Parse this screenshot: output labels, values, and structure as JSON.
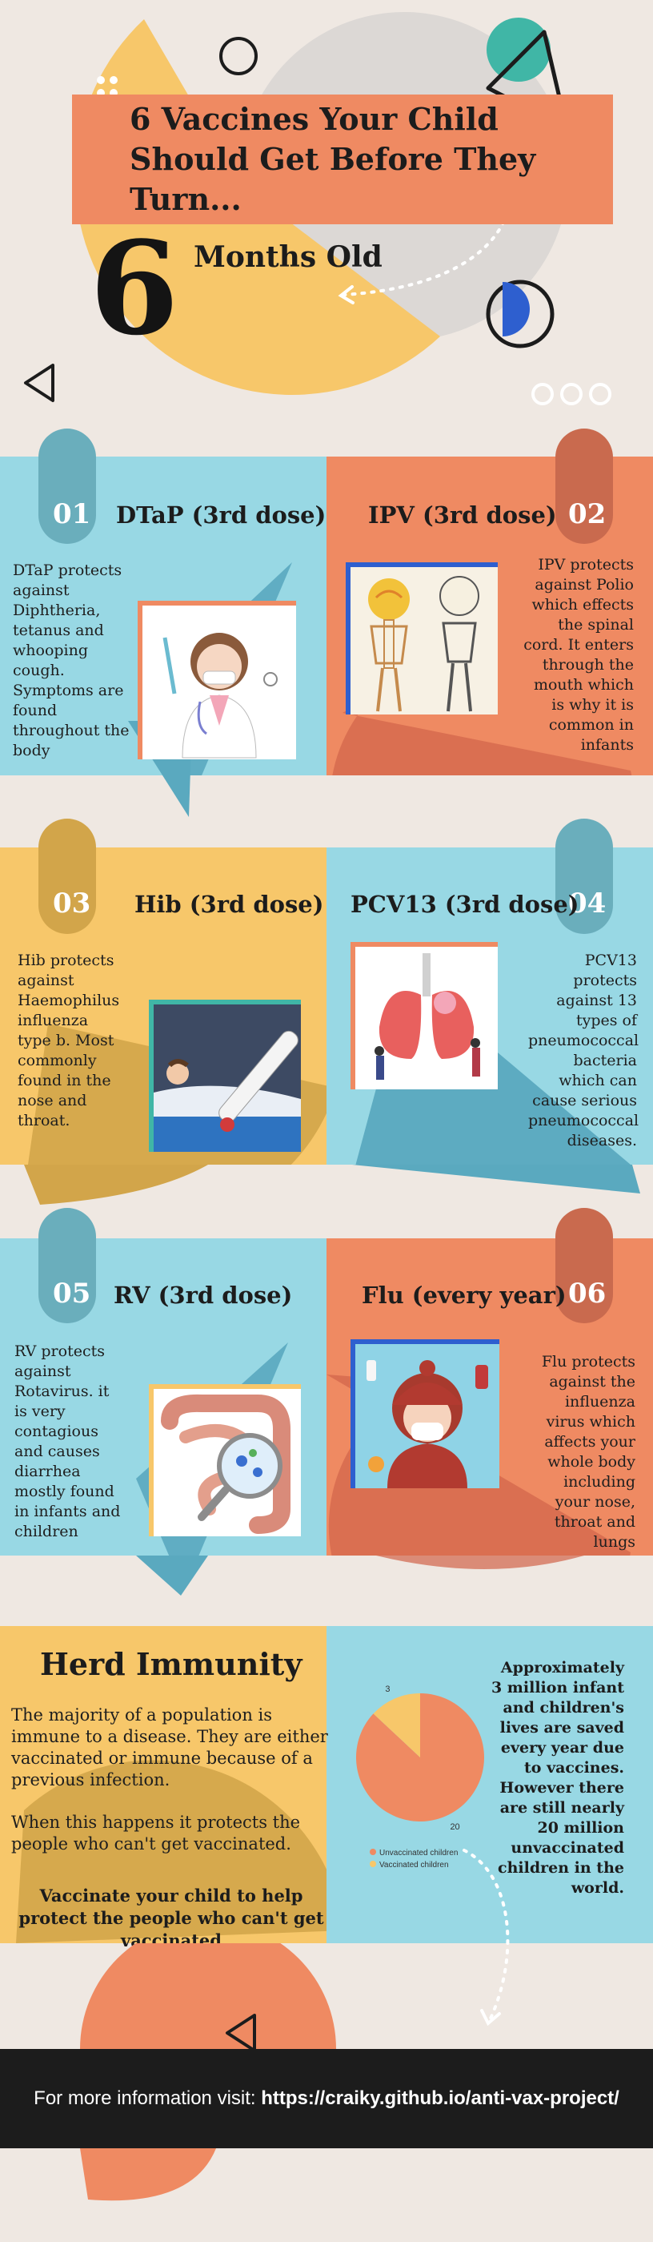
{
  "header": {
    "title": "6 Vaccines Your Child Should Get Before They Turn...",
    "big_number": "6",
    "subtitle": "Months Old"
  },
  "vaccines": [
    {
      "num": "01",
      "name": "DTaP (3rd dose)",
      "desc": "DTaP protects against Diphtheria, tetanus and whooping cough. Symptoms are found throughout the body"
    },
    {
      "num": "02",
      "name": "IPV (3rd dose)",
      "desc": "IPV protects against Polio which effects the spinal cord. It enters through the mouth which is why it is common in infants"
    },
    {
      "num": "03",
      "name": "Hib (3rd dose)",
      "desc": "Hib protects against Haemophilus influenza type b. Most commonly found in the nose and throat."
    },
    {
      "num": "04",
      "name": "PCV13 (3rd dose)",
      "desc": "PCV13 protects against 13 types of pneumococcal bacteria which can cause serious pneumococcal diseases."
    },
    {
      "num": "05",
      "name": "RV (3rd dose)",
      "desc": "RV protects against Rotavirus. it is very contagious and causes diarrhea mostly found in infants and children"
    },
    {
      "num": "06",
      "name": "Flu (every year)",
      "desc": "Flu protects against the influenza virus which affects your whole body including your nose, throat and lungs"
    }
  ],
  "herd": {
    "title": "Herd Immunity",
    "p1": "The majority of a population is immune to a disease. They are either vaccinated or immune because of a previous infection.",
    "p2": "When this happens it protects the people who can't get vaccinated.",
    "bold": "Vaccinate your child to help protect the people who can't get vaccinated",
    "stat": "Approximately 3 million infant and children's lives are saved every year due to vaccines. However there are still nearly 20 million unvaccinated children in the world."
  },
  "chart_data": {
    "type": "pie",
    "categories": [
      "Unvaccinated children",
      "Vaccinated children"
    ],
    "values": [
      20,
      3
    ],
    "colors": [
      "#ef8a62",
      "#f7c76a"
    ],
    "legend_placement": "bottom"
  },
  "footer": {
    "prefix": "For more information visit: ",
    "url": "https://craiky.github.io/anti-vax-project/"
  },
  "colors": {
    "teal": "#98d8e4",
    "orange": "#ef8a62",
    "yellow": "#f7c76a",
    "bg": "#efe8e2",
    "dark": "#1c1c1c"
  }
}
